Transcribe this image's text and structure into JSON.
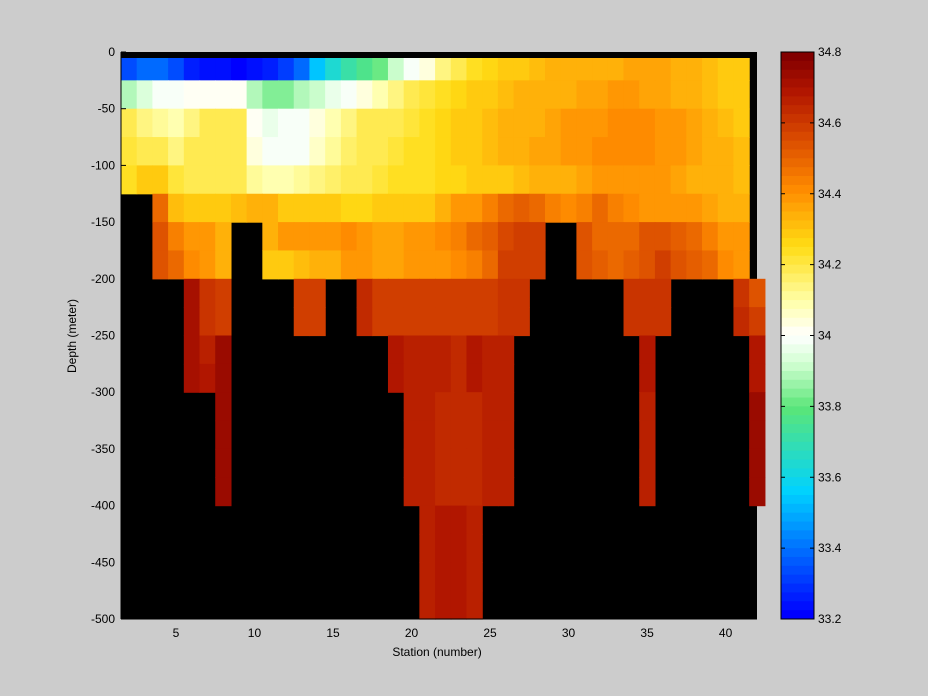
{
  "chart_data": {
    "type": "heatmap",
    "title": "",
    "xlabel": "Station (number)",
    "ylabel": "Depth (meter)",
    "xlim": [
      1.5,
      42
    ],
    "ylim": [
      -500,
      0
    ],
    "xticks": [
      5,
      10,
      15,
      20,
      25,
      30,
      35,
      40
    ],
    "yticks": [
      0,
      -50,
      -100,
      -150,
      -200,
      -250,
      -300,
      -350,
      -400,
      -450,
      -500
    ],
    "colorbar": {
      "min": 33.2,
      "max": 34.8,
      "ticks": [
        34.8,
        34.6,
        34.4,
        34.2,
        34,
        33.8,
        33.6,
        33.4,
        33.2
      ],
      "colormap": "jet-like (blue-cyan-green-white-yellow-orange-red)"
    },
    "no_data_color": "#000000",
    "cell_size_m": 25,
    "bands": [
      {
        "depth": [
          -25,
          0
        ],
        "first_station": 2,
        "values": [
          33.33,
          33.38,
          33.38,
          33.35,
          33.27,
          33.25,
          33.24,
          33.22,
          33.25,
          33.27,
          33.31,
          33.4,
          33.55,
          33.63,
          33.72,
          33.77,
          33.82,
          33.92,
          33.99,
          34.05,
          34.15,
          34.2,
          34.25,
          34.27,
          34.28,
          34.3,
          34.32,
          34.33,
          34.34,
          34.35,
          34.35,
          34.35,
          34.36,
          34.37,
          34.36,
          34.35,
          34.33,
          34.32,
          34.3,
          34.3
        ]
      },
      {
        "depth": [
          -50,
          -25
        ],
        "first_station": 2,
        "values": [
          33.9,
          33.95,
          33.98,
          34.0,
          34.02,
          34.02,
          34.02,
          34.02,
          33.9,
          33.85,
          33.85,
          33.88,
          33.92,
          33.96,
          34.0,
          34.05,
          34.1,
          34.15,
          34.2,
          34.22,
          34.24,
          34.26,
          34.28,
          34.3,
          34.32,
          34.33,
          34.34,
          34.34,
          34.35,
          34.36,
          34.37,
          34.38,
          34.38,
          34.37,
          34.36,
          34.35,
          34.33,
          34.32,
          34.3,
          34.3
        ]
      },
      {
        "depth": [
          -75,
          -50
        ],
        "first_station": 2,
        "values": [
          34.2,
          34.15,
          34.12,
          34.1,
          34.15,
          34.18,
          34.2,
          34.18,
          34.02,
          33.97,
          33.98,
          34.0,
          34.04,
          34.1,
          34.15,
          34.18,
          34.2,
          34.2,
          34.22,
          34.24,
          34.26,
          34.28,
          34.3,
          34.32,
          34.33,
          34.34,
          34.35,
          34.36,
          34.38,
          34.39,
          34.4,
          34.41,
          34.42,
          34.42,
          34.4,
          34.38,
          34.36,
          34.34,
          34.32,
          34.3
        ]
      },
      {
        "depth": [
          -100,
          -75
        ],
        "first_station": 2,
        "values": [
          34.22,
          34.2,
          34.18,
          34.15,
          34.18,
          34.2,
          34.2,
          34.18,
          34.05,
          33.98,
          33.98,
          34.0,
          34.06,
          34.12,
          34.16,
          34.18,
          34.2,
          34.22,
          34.23,
          34.25,
          34.27,
          34.28,
          34.3,
          34.32,
          34.33,
          34.35,
          34.36,
          34.37,
          34.38,
          34.4,
          34.41,
          34.42,
          34.42,
          34.41,
          34.4,
          34.38,
          34.36,
          34.35,
          34.33,
          34.32
        ]
      },
      {
        "depth": [
          -125,
          -100
        ],
        "first_station": 2,
        "values": [
          34.25,
          34.28,
          34.3,
          34.22,
          34.2,
          34.2,
          34.2,
          34.18,
          34.12,
          34.1,
          34.1,
          34.12,
          34.14,
          34.16,
          34.18,
          34.2,
          34.22,
          34.23,
          34.24,
          34.25,
          34.26,
          34.27,
          34.28,
          34.29,
          34.3,
          34.32,
          34.33,
          34.34,
          34.35,
          34.36,
          34.38,
          34.4,
          34.4,
          34.39,
          34.38,
          34.36,
          34.35,
          34.34,
          34.33,
          34.32
        ]
      },
      {
        "depth": [
          -150,
          -125
        ],
        "first_station": 4,
        "values": [
          34.5,
          34.32,
          34.3,
          34.3,
          34.3,
          34.32,
          34.33,
          34.34,
          34.3,
          34.3,
          34.3,
          34.28,
          34.27,
          34.27,
          34.28,
          34.28,
          34.3,
          34.3,
          34.35,
          34.38,
          34.4,
          34.45,
          34.5,
          34.52,
          34.5,
          34.45,
          34.42,
          34.45,
          34.5,
          34.45,
          34.42,
          34.4,
          34.4,
          34.4,
          34.38,
          34.36,
          34.35,
          34.35
        ]
      },
      {
        "depth": [
          -175,
          -150
        ],
        "first_station": 4,
        "values": [
          34.55,
          34.45,
          34.4,
          34.4,
          34.35,
          null,
          null,
          34.35,
          34.38,
          34.38,
          34.38,
          34.4,
          34.42,
          34.38,
          34.36,
          34.37,
          34.38,
          34.4,
          34.42,
          34.45,
          34.48,
          34.52,
          34.56,
          34.58,
          34.6,
          null,
          null,
          34.55,
          34.5,
          34.48,
          34.5,
          34.55,
          34.55,
          34.52,
          34.5,
          34.45,
          34.4,
          34.4
        ]
      },
      {
        "depth": [
          -200,
          -175
        ],
        "first_station": 4,
        "values": [
          34.55,
          34.48,
          34.42,
          34.38,
          34.35,
          null,
          null,
          34.3,
          34.3,
          34.32,
          34.33,
          34.35,
          34.38,
          34.38,
          34.36,
          34.36,
          34.38,
          34.38,
          34.4,
          34.42,
          34.44,
          34.48,
          34.58,
          34.6,
          34.6,
          null,
          null,
          34.55,
          34.52,
          34.5,
          34.52,
          34.55,
          34.58,
          34.55,
          34.52,
          34.48,
          34.42,
          34.4
        ]
      },
      {
        "depth": [
          -225,
          -200
        ],
        "first_station": 6,
        "values": [
          34.72,
          34.62,
          34.6,
          null,
          null,
          null,
          null,
          34.6,
          34.58,
          null,
          null,
          34.65,
          34.6,
          34.58,
          34.58,
          34.58,
          34.58,
          34.58,
          34.6,
          34.6,
          34.62,
          34.62,
          null,
          null,
          null,
          null,
          null,
          null,
          34.62,
          34.62,
          34.62,
          null,
          null,
          null,
          null,
          34.62,
          34.55
        ]
      },
      {
        "depth": [
          -250,
          -225
        ],
        "first_station": 6,
        "values": [
          34.72,
          34.62,
          34.6,
          null,
          null,
          null,
          null,
          34.6,
          34.6,
          null,
          null,
          34.65,
          34.6,
          34.58,
          34.58,
          34.58,
          34.58,
          34.58,
          34.6,
          34.6,
          34.62,
          34.62,
          null,
          null,
          null,
          null,
          null,
          null,
          34.62,
          34.62,
          34.62,
          null,
          null,
          null,
          null,
          34.65,
          34.58
        ]
      },
      {
        "depth": [
          -275,
          -250
        ],
        "first_station": 6,
        "values": [
          34.72,
          34.66,
          34.75,
          null,
          null,
          null,
          null,
          null,
          null,
          null,
          null,
          null,
          null,
          34.68,
          34.66,
          34.66,
          34.66,
          34.64,
          34.68,
          34.66,
          34.66,
          null,
          null,
          null,
          null,
          null,
          null,
          null,
          null,
          34.7,
          null,
          null,
          null,
          null,
          null,
          null,
          34.68
        ]
      },
      {
        "depth": [
          -300,
          -275
        ],
        "first_station": 6,
        "values": [
          34.72,
          34.68,
          34.75,
          null,
          null,
          null,
          null,
          null,
          null,
          null,
          null,
          null,
          null,
          34.68,
          34.66,
          34.66,
          34.66,
          34.64,
          34.68,
          34.66,
          34.66,
          null,
          null,
          null,
          null,
          null,
          null,
          null,
          null,
          34.7,
          null,
          null,
          null,
          null,
          null,
          null,
          34.68
        ]
      },
      {
        "depth": [
          -325,
          -300
        ],
        "first_station": 8,
        "values": [
          34.75,
          null,
          null,
          null,
          null,
          null,
          null,
          null,
          null,
          null,
          null,
          null,
          34.66,
          34.66,
          34.64,
          34.64,
          34.64,
          34.66,
          34.66,
          null,
          null,
          null,
          null,
          null,
          null,
          null,
          null,
          34.66,
          null,
          null,
          null,
          null,
          null,
          null,
          34.75
        ]
      },
      {
        "depth": [
          -350,
          -325
        ],
        "first_station": 8,
        "values": [
          34.75,
          null,
          null,
          null,
          null,
          null,
          null,
          null,
          null,
          null,
          null,
          null,
          34.66,
          34.66,
          34.64,
          34.64,
          34.64,
          34.66,
          34.66,
          null,
          null,
          null,
          null,
          null,
          null,
          null,
          null,
          34.66,
          null,
          null,
          null,
          null,
          null,
          null,
          34.75
        ]
      },
      {
        "depth": [
          -375,
          -350
        ],
        "first_station": 8,
        "values": [
          34.75,
          null,
          null,
          null,
          null,
          null,
          null,
          null,
          null,
          null,
          null,
          null,
          34.66,
          34.66,
          34.64,
          34.64,
          34.64,
          34.66,
          34.66,
          null,
          null,
          null,
          null,
          null,
          null,
          null,
          null,
          34.66,
          null,
          null,
          null,
          null,
          null,
          null,
          34.75
        ]
      },
      {
        "depth": [
          -400,
          -375
        ],
        "first_station": 8,
        "values": [
          34.75,
          null,
          null,
          null,
          null,
          null,
          null,
          null,
          null,
          null,
          null,
          null,
          34.66,
          34.66,
          34.64,
          34.64,
          34.64,
          34.66,
          34.66,
          null,
          null,
          null,
          null,
          null,
          null,
          null,
          null,
          34.66,
          null,
          null,
          null,
          null,
          null,
          null,
          34.75
        ]
      },
      {
        "depth": [
          -425,
          -400
        ],
        "first_station": 21,
        "values": [
          34.66,
          34.7,
          34.7,
          34.66
        ]
      },
      {
        "depth": [
          -450,
          -425
        ],
        "first_station": 21,
        "values": [
          34.66,
          34.7,
          34.7,
          34.66
        ]
      },
      {
        "depth": [
          -475,
          -450
        ],
        "first_station": 21,
        "values": [
          34.66,
          34.7,
          34.7,
          34.66
        ]
      },
      {
        "depth": [
          -500,
          -475
        ],
        "first_station": 21,
        "values": [
          34.66,
          34.7,
          34.7,
          34.66
        ]
      }
    ]
  }
}
